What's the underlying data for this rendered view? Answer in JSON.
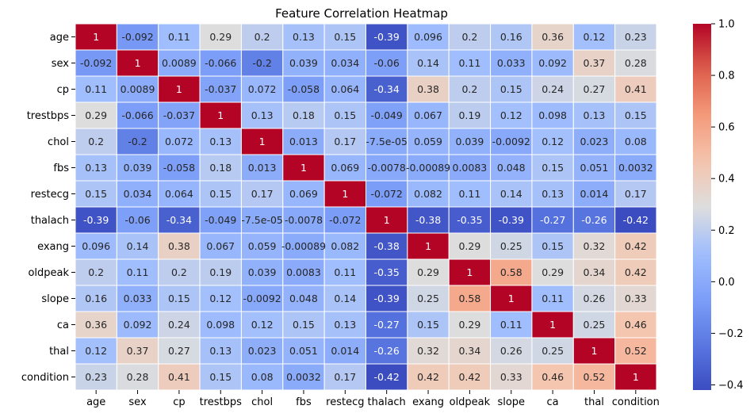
{
  "chart_data": {
    "type": "heatmap",
    "title": "Feature Correlation Heatmap",
    "xlabel": "",
    "ylabel": "",
    "labels": [
      "age",
      "sex",
      "cp",
      "trestbps",
      "chol",
      "fbs",
      "restecg",
      "thalach",
      "exang",
      "oldpeak",
      "slope",
      "ca",
      "thal",
      "condition"
    ],
    "matrix": [
      [
        1,
        -0.092,
        0.11,
        0.29,
        0.2,
        0.13,
        0.15,
        -0.39,
        0.096,
        0.2,
        0.16,
        0.36,
        0.12,
        0.23
      ],
      [
        -0.092,
        1,
        0.0089,
        -0.066,
        -0.2,
        0.039,
        0.034,
        -0.06,
        0.14,
        0.11,
        0.033,
        0.092,
        0.37,
        0.28
      ],
      [
        0.11,
        0.0089,
        1,
        -0.037,
        0.072,
        -0.058,
        0.064,
        -0.34,
        0.38,
        0.2,
        0.15,
        0.24,
        0.27,
        0.41
      ],
      [
        0.29,
        -0.066,
        -0.037,
        1,
        0.13,
        0.18,
        0.15,
        -0.049,
        0.067,
        0.19,
        0.12,
        0.098,
        0.13,
        0.15
      ],
      [
        0.2,
        -0.2,
        0.072,
        0.13,
        1,
        0.013,
        0.17,
        -7.5e-05,
        0.059,
        0.039,
        -0.0092,
        0.12,
        0.023,
        0.08
      ],
      [
        0.13,
        0.039,
        -0.058,
        0.18,
        0.013,
        1,
        0.069,
        -0.0078,
        -0.00089,
        0.0083,
        0.048,
        0.15,
        0.051,
        0.0032
      ],
      [
        0.15,
        0.034,
        0.064,
        0.15,
        0.17,
        0.069,
        1,
        -0.072,
        0.082,
        0.11,
        0.14,
        0.13,
        0.014,
        0.17
      ],
      [
        -0.39,
        -0.06,
        -0.34,
        -0.049,
        -7.5e-05,
        -0.0078,
        -0.072,
        1,
        -0.38,
        -0.35,
        -0.39,
        -0.27,
        -0.26,
        -0.42
      ],
      [
        0.096,
        0.14,
        0.38,
        0.067,
        0.059,
        -0.00089,
        0.082,
        -0.38,
        1,
        0.29,
        0.25,
        0.15,
        0.32,
        0.42
      ],
      [
        0.2,
        0.11,
        0.2,
        0.19,
        0.039,
        0.0083,
        0.11,
        -0.35,
        0.29,
        1,
        0.58,
        0.29,
        0.34,
        0.42
      ],
      [
        0.16,
        0.033,
        0.15,
        0.12,
        -0.0092,
        0.048,
        0.14,
        -0.39,
        0.25,
        0.58,
        1,
        0.11,
        0.26,
        0.33
      ],
      [
        0.36,
        0.092,
        0.24,
        0.098,
        0.12,
        0.15,
        0.13,
        -0.27,
        0.15,
        0.29,
        0.11,
        1,
        0.25,
        0.46
      ],
      [
        0.12,
        0.37,
        0.27,
        0.13,
        0.023,
        0.051,
        0.014,
        -0.26,
        0.32,
        0.34,
        0.26,
        0.25,
        1,
        0.52
      ],
      [
        0.23,
        0.28,
        0.41,
        0.15,
        0.08,
        0.0032,
        0.17,
        -0.42,
        0.42,
        0.42,
        0.33,
        0.46,
        0.52,
        1
      ]
    ],
    "annotations": [
      [
        "1",
        "-0.092",
        "0.11",
        "0.29",
        "0.2",
        "0.13",
        "0.15",
        "-0.39",
        "0.096",
        "0.2",
        "0.16",
        "0.36",
        "0.12",
        "0.23"
      ],
      [
        "-0.092",
        "1",
        "0.0089",
        "-0.066",
        "-0.2",
        "0.039",
        "0.034",
        "-0.06",
        "0.14",
        "0.11",
        "0.033",
        "0.092",
        "0.37",
        "0.28"
      ],
      [
        "0.11",
        "0.0089",
        "1",
        "-0.037",
        "0.072",
        "-0.058",
        "0.064",
        "-0.34",
        "0.38",
        "0.2",
        "0.15",
        "0.24",
        "0.27",
        "0.41"
      ],
      [
        "0.29",
        "-0.066",
        "-0.037",
        "1",
        "0.13",
        "0.18",
        "0.15",
        "-0.049",
        "0.067",
        "0.19",
        "0.12",
        "0.098",
        "0.13",
        "0.15"
      ],
      [
        "0.2",
        "-0.2",
        "0.072",
        "0.13",
        "1",
        "0.013",
        "0.17",
        "-7.5e-05",
        "0.059",
        "0.039",
        "-0.0092",
        "0.12",
        "0.023",
        "0.08"
      ],
      [
        "0.13",
        "0.039",
        "-0.058",
        "0.18",
        "0.013",
        "1",
        "0.069",
        "-0.0078",
        "-0.00089",
        "0.0083",
        "0.048",
        "0.15",
        "0.051",
        "0.0032"
      ],
      [
        "0.15",
        "0.034",
        "0.064",
        "0.15",
        "0.17",
        "0.069",
        "1",
        "-0.072",
        "0.082",
        "0.11",
        "0.14",
        "0.13",
        "0.014",
        "0.17"
      ],
      [
        "-0.39",
        "-0.06",
        "-0.34",
        "-0.049",
        "-7.5e-05",
        "-0.0078",
        "-0.072",
        "1",
        "-0.38",
        "-0.35",
        "-0.39",
        "-0.27",
        "-0.26",
        "-0.42"
      ],
      [
        "0.096",
        "0.14",
        "0.38",
        "0.067",
        "0.059",
        "-0.00089",
        "0.082",
        "-0.38",
        "1",
        "0.29",
        "0.25",
        "0.15",
        "0.32",
        "0.42"
      ],
      [
        "0.2",
        "0.11",
        "0.2",
        "0.19",
        "0.039",
        "0.0083",
        "0.11",
        "-0.35",
        "0.29",
        "1",
        "0.58",
        "0.29",
        "0.34",
        "0.42"
      ],
      [
        "0.16",
        "0.033",
        "0.15",
        "0.12",
        "-0.0092",
        "0.048",
        "0.14",
        "-0.39",
        "0.25",
        "0.58",
        "1",
        "0.11",
        "0.26",
        "0.33"
      ],
      [
        "0.36",
        "0.092",
        "0.24",
        "0.098",
        "0.12",
        "0.15",
        "0.13",
        "-0.27",
        "0.15",
        "0.29",
        "0.11",
        "1",
        "0.25",
        "0.46"
      ],
      [
        "0.12",
        "0.37",
        "0.27",
        "0.13",
        "0.023",
        "0.051",
        "0.014",
        "-0.26",
        "0.32",
        "0.34",
        "0.26",
        "0.25",
        "1",
        "0.52"
      ],
      [
        "0.23",
        "0.28",
        "0.41",
        "0.15",
        "0.08",
        "0.0032",
        "0.17",
        "-0.42",
        "0.42",
        "0.42",
        "0.33",
        "0.46",
        "0.52",
        "1"
      ]
    ],
    "colormap": "coolwarm",
    "vmin": -0.42,
    "vmax": 1,
    "colorbar": {
      "ticks": [
        1.0,
        0.8,
        0.6,
        0.4,
        0.2,
        0.0,
        -0.2,
        -0.4
      ],
      "tick_labels": [
        "1.0",
        "0.8",
        "0.6",
        "0.4",
        "0.2",
        "0.0",
        "−0.2",
        "−0.4"
      ]
    },
    "grid": false,
    "legend": "colorbar-right"
  }
}
